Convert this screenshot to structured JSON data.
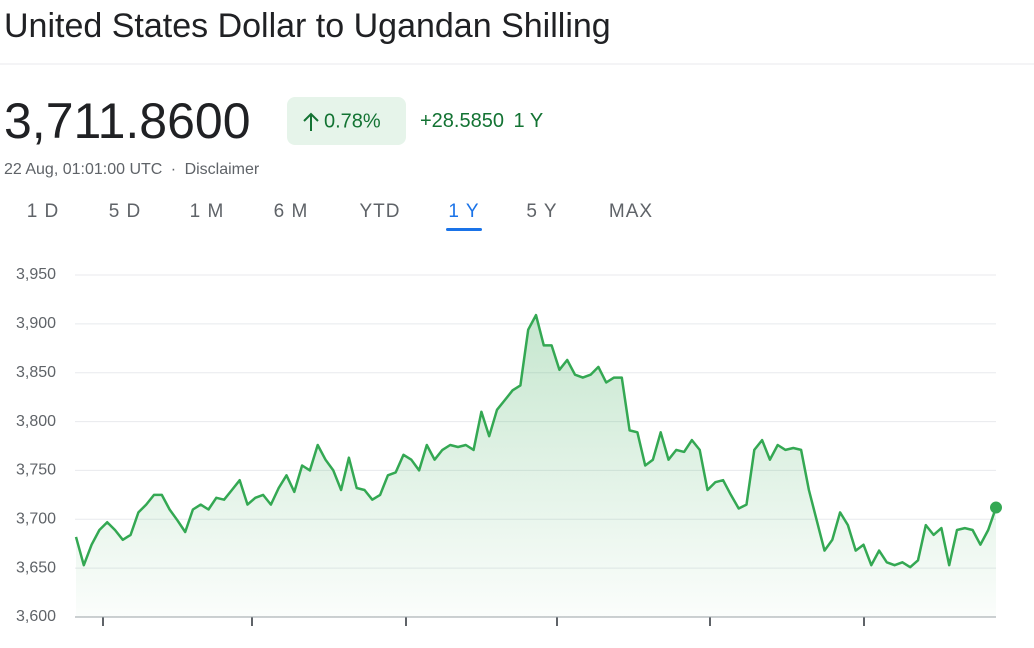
{
  "header": {
    "title": "United States Dollar to Ugandan Shilling",
    "price": "3,711.8600",
    "change_pct": "0.78%",
    "change_abs": "+28.5850",
    "change_period": "1 Y",
    "timestamp": "22 Aug, 01:01:00 UTC",
    "separator": "·",
    "disclaimer": "Disclaimer"
  },
  "tabs": [
    {
      "label": "1 D"
    },
    {
      "label": "5 D"
    },
    {
      "label": "1 M"
    },
    {
      "label": "6 M"
    },
    {
      "label": "YTD"
    },
    {
      "label": "1 Y",
      "selected": true
    },
    {
      "label": "5 Y"
    },
    {
      "label": "MAX"
    }
  ],
  "chart_data": {
    "type": "line",
    "color": "#34a853",
    "grid": true,
    "ylim": [
      3600,
      3950
    ],
    "yticks": [
      {
        "value": 3600,
        "label": "3,600"
      },
      {
        "value": 3650,
        "label": "3,650"
      },
      {
        "value": 3700,
        "label": "3,700"
      },
      {
        "value": 3750,
        "label": "3,750"
      },
      {
        "value": 3800,
        "label": "3,800"
      },
      {
        "value": 3850,
        "label": "3,850"
      },
      {
        "value": 3900,
        "label": "3,900"
      },
      {
        "value": 3950,
        "label": "3,950"
      }
    ],
    "values": [
      3682,
      3653,
      3674,
      3689,
      3697,
      3689,
      3679,
      3684,
      3707,
      3715,
      3725,
      3725,
      3710,
      3699,
      3687,
      3710,
      3715,
      3710,
      3722,
      3720,
      3730,
      3740,
      3715,
      3722,
      3725,
      3715,
      3732,
      3745,
      3728,
      3755,
      3750,
      3776,
      3761,
      3750,
      3730,
      3763,
      3732,
      3730,
      3720,
      3725,
      3745,
      3748,
      3766,
      3761,
      3750,
      3776,
      3761,
      3771,
      3776,
      3774,
      3776,
      3771,
      3810,
      3785,
      3812,
      3822,
      3832,
      3837,
      3894,
      3909,
      3878,
      3878,
      3853,
      3863,
      3848,
      3845,
      3848,
      3856,
      3840,
      3845,
      3845,
      3791,
      3789,
      3755,
      3761,
      3789,
      3761,
      3771,
      3769,
      3781,
      3771,
      3730,
      3738,
      3740,
      3725,
      3711,
      3715,
      3771,
      3781,
      3761,
      3776,
      3771,
      3773,
      3771,
      3730,
      3699,
      3668,
      3679,
      3707,
      3694,
      3668,
      3674,
      3653,
      3668,
      3656,
      3653,
      3656,
      3651,
      3658,
      3694,
      3684,
      3691,
      3653,
      3689,
      3691,
      3689,
      3674,
      3689,
      3712
    ]
  }
}
